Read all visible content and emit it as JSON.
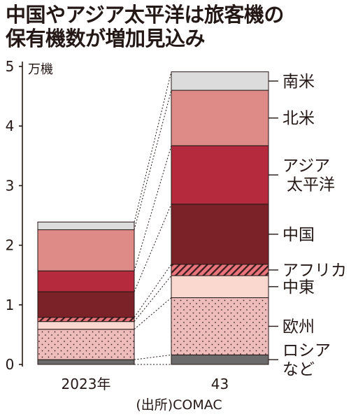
{
  "header": {
    "title_line1": "中国やアジア太平洋は旅客機の",
    "title_line2": "保有機数が増加見込み"
  },
  "source": "(出所)COMAC",
  "chart_data": {
    "type": "bar",
    "stacked": true,
    "categories": [
      "2023年",
      "43"
    ],
    "y_unit": "万機",
    "ylim": [
      0,
      5
    ],
    "y_ticks": [
      "0",
      "1",
      "2",
      "3",
      "4",
      "5"
    ],
    "series": [
      {
        "name": "ロシア など",
        "label_lines": [
          "ロシア",
          "など"
        ],
        "values": [
          0.08,
          0.16
        ],
        "color": "#6b6b6b",
        "pattern": "none"
      },
      {
        "name": "欧州",
        "label_lines": [
          "欧州"
        ],
        "values": [
          0.51,
          0.96
        ],
        "color": "#efbcbc",
        "pattern": "dots"
      },
      {
        "name": "中東",
        "label_lines": [
          "中東"
        ],
        "values": [
          0.13,
          0.37
        ],
        "color": "#fbd8cf",
        "pattern": "none"
      },
      {
        "name": "アフリカ",
        "label_lines": [
          "アフリカ"
        ],
        "values": [
          0.07,
          0.19
        ],
        "color": "#e9747c",
        "pattern": "hatch"
      },
      {
        "name": "中国",
        "label_lines": [
          "中国"
        ],
        "values": [
          0.43,
          1.01
        ],
        "color": "#7b2128",
        "pattern": "none"
      },
      {
        "name": "アジア 太平洋",
        "label_lines": [
          "アジア",
          "太平洋"
        ],
        "values": [
          0.35,
          0.98
        ],
        "color": "#b52a3d",
        "pattern": "none"
      },
      {
        "name": "北米",
        "label_lines": [
          "北米"
        ],
        "values": [
          0.69,
          0.93
        ],
        "color": "#de8a86",
        "pattern": "none"
      },
      {
        "name": "南米",
        "label_lines": [
          "南米"
        ],
        "values": [
          0.13,
          0.31
        ],
        "color": "#dcdcdc",
        "pattern": "none"
      }
    ]
  }
}
